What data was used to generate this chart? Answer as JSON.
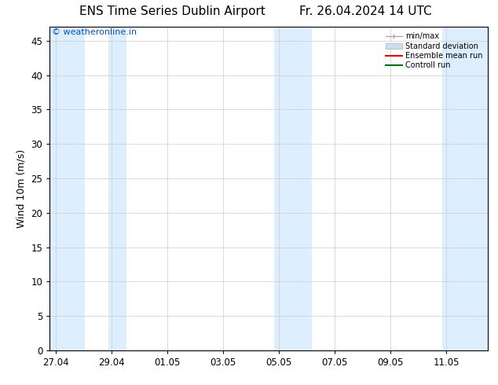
{
  "title": "ENS Time Series Dublin Airport",
  "title_right": "Fr. 26.04.2024 14 UTC",
  "ylabel": "Wind 10m (m/s)",
  "watermark": "© weatheronline.in",
  "watermark_color": "#0055cc",
  "ylim": [
    0,
    47
  ],
  "yticks": [
    0,
    5,
    10,
    15,
    20,
    25,
    30,
    35,
    40,
    45
  ],
  "x_tick_labels": [
    "27.04",
    "29.04",
    "01.05",
    "03.05",
    "05.05",
    "07.05",
    "09.05",
    "11.05"
  ],
  "x_tick_positions": [
    0,
    2,
    4,
    6,
    8,
    10,
    12,
    14
  ],
  "x_lim": [
    -0.2,
    15.5
  ],
  "shaded_bands": [
    {
      "x_start": -0.2,
      "x_end": 1.05,
      "color": "#ddeeff"
    },
    {
      "x_start": 1.9,
      "x_end": 2.55,
      "color": "#ddeeff"
    },
    {
      "x_start": 7.85,
      "x_end": 9.2,
      "color": "#ddeeff"
    },
    {
      "x_start": 13.85,
      "x_end": 15.5,
      "color": "#ddeeff"
    }
  ],
  "legend_entries": [
    {
      "label": "min/max",
      "color": "#999999",
      "style": "minmax"
    },
    {
      "label": "Standard deviation",
      "color": "#bbccdd",
      "style": "stddev"
    },
    {
      "label": "Ensemble mean run",
      "color": "#ff0000",
      "style": "line"
    },
    {
      "label": "Controll run",
      "color": "#007700",
      "style": "line"
    }
  ],
  "bg_color": "#ffffff",
  "plot_bg_color": "#ffffff",
  "grid_color": "#cccccc",
  "axis_color": "#000000",
  "title_fontsize": 11,
  "label_fontsize": 9,
  "tick_fontsize": 8.5,
  "watermark_fontsize": 8
}
